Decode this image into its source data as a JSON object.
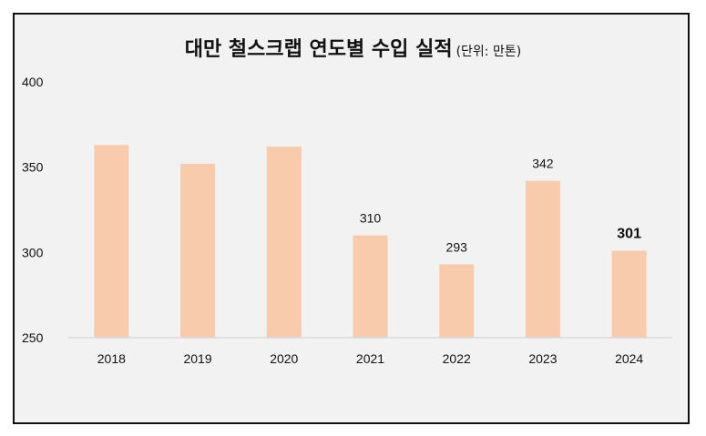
{
  "chart_data": {
    "type": "bar",
    "title": "대만 철스크랩 연도별 수입 실적",
    "unit_note": "(단위: 만톤)",
    "categories": [
      "2018",
      "2019",
      "2020",
      "2021",
      "2022",
      "2023",
      "2024"
    ],
    "values": [
      363,
      352,
      362,
      310,
      293,
      342,
      301
    ],
    "data_labels": [
      "",
      "",
      "",
      "310",
      "293",
      "342",
      "301"
    ],
    "highlight_label_index": 6,
    "ylim": [
      250,
      400
    ],
    "yticks": [
      "250",
      "300",
      "350",
      "400"
    ],
    "bar_color": "#f8cbad",
    "axis_color": "#d9d9d9",
    "grid": false,
    "legend": "none"
  }
}
